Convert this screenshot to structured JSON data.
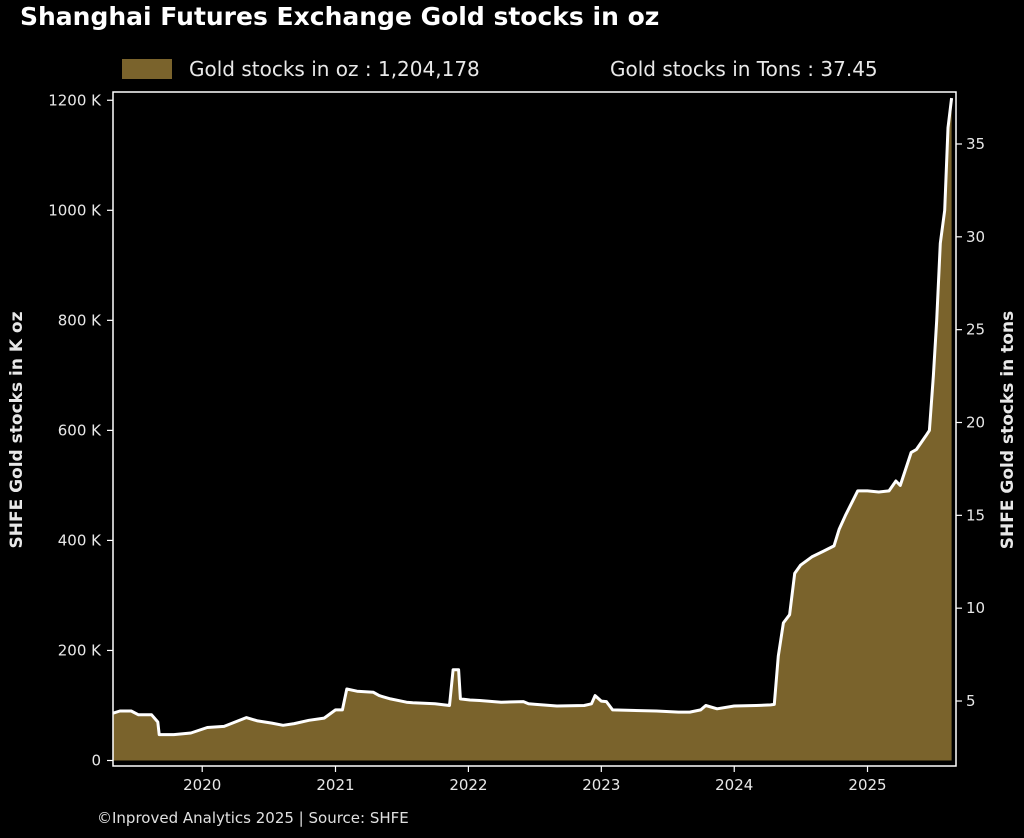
{
  "chart_data": {
    "type": "area",
    "title": "Shanghai Futures Exchange Gold stocks in oz",
    "legend": [
      {
        "label": "Gold stocks in oz : 1,204,178"
      },
      {
        "label": "Gold stocks in Tons : 37.45"
      }
    ],
    "ylabel_left": "SHFE Gold stocks in K oz",
    "ylabel_right": "SHFE Gold stocks in tons",
    "xlim": [
      "2019-05-01",
      "2025-09-01"
    ],
    "ylim_left": [
      -10,
      1215
    ],
    "ylim_right": [
      1.5,
      37.8
    ],
    "x_ticks": [
      "2020",
      "2021",
      "2022",
      "2023",
      "2024",
      "2025"
    ],
    "y_ticks_left": [
      "0",
      "200 K",
      "400 K",
      "600 K",
      "800 K",
      "1000 K",
      "1200 K"
    ],
    "y_ticks_right": [
      "5",
      "10",
      "15",
      "20",
      "25",
      "30",
      "35"
    ],
    "y_tick_values_left": [
      0,
      200,
      400,
      600,
      800,
      1000,
      1200
    ],
    "y_tick_values_right": [
      5,
      10,
      15,
      20,
      25,
      30,
      35
    ],
    "grid": false,
    "series": [
      {
        "name": "Gold stocks in oz",
        "unit": "K oz",
        "x": [
          "2019-05-01",
          "2019-05-20",
          "2019-06-20",
          "2019-07-10",
          "2019-08-15",
          "2019-09-01",
          "2019-09-05",
          "2019-10-15",
          "2019-12-01",
          "2020-01-15",
          "2020-03-01",
          "2020-05-01",
          "2020-06-01",
          "2020-07-10",
          "2020-08-10",
          "2020-09-10",
          "2020-10-20",
          "2020-12-01",
          "2021-01-01",
          "2021-01-20",
          "2021-02-01",
          "2021-03-01",
          "2021-04-15",
          "2021-05-01",
          "2021-06-01",
          "2021-07-15",
          "2021-08-01",
          "2021-09-01",
          "2021-10-01",
          "2021-11-10",
          "2021-11-20",
          "2021-12-05",
          "2021-12-10",
          "2022-01-05",
          "2022-02-01",
          "2022-04-01",
          "2022-06-01",
          "2022-06-15",
          "2022-07-05",
          "2022-09-01",
          "2022-11-15",
          "2022-12-05",
          "2022-12-15",
          "2023-01-01",
          "2023-01-15",
          "2023-02-01",
          "2023-06-01",
          "2023-08-01",
          "2023-09-01",
          "2023-10-01",
          "2023-10-15",
          "2023-11-15",
          "2024-01-01",
          "2024-03-01",
          "2024-04-10",
          "2024-04-20",
          "2024-05-01",
          "2024-05-15",
          "2024-06-01",
          "2024-06-15",
          "2024-07-01",
          "2024-08-01",
          "2024-09-01",
          "2024-10-01",
          "2024-10-15",
          "2024-11-01",
          "2024-11-20",
          "2024-12-05",
          "2025-01-01",
          "2025-02-01",
          "2025-03-01",
          "2025-03-20",
          "2025-04-01",
          "2025-05-01",
          "2025-05-15",
          "2025-06-10",
          "2025-06-20",
          "2025-07-01",
          "2025-07-10",
          "2025-07-20",
          "2025-08-01",
          "2025-08-10",
          "2025-08-20"
        ],
        "values": [
          86,
          90,
          90,
          83,
          83,
          70,
          47,
          47,
          50,
          60,
          62,
          78,
          72,
          68,
          64,
          67,
          73,
          77,
          92,
          92,
          130,
          126,
          124,
          118,
          112,
          106,
          105,
          104,
          103,
          100,
          165,
          165,
          112,
          110,
          109,
          106,
          107,
          103,
          102,
          99,
          100,
          103,
          118,
          108,
          107,
          92,
          90,
          88,
          88,
          92,
          100,
          94,
          99,
          100,
          101,
          102,
          190,
          250,
          265,
          340,
          355,
          370,
          380,
          390,
          420,
          445,
          470,
          490,
          490,
          488,
          490,
          508,
          500,
          560,
          565,
          590,
          600,
          700,
          800,
          940,
          1000,
          1150,
          1204
        ]
      }
    ],
    "annotation": "©Inproved Analytics 2025 | Source: SHFE"
  },
  "colors": {
    "background": "#000000",
    "area_fill": "#7a632c",
    "line": "#ffffff",
    "axis": "#ffffff",
    "text": "#e8e8e8"
  }
}
